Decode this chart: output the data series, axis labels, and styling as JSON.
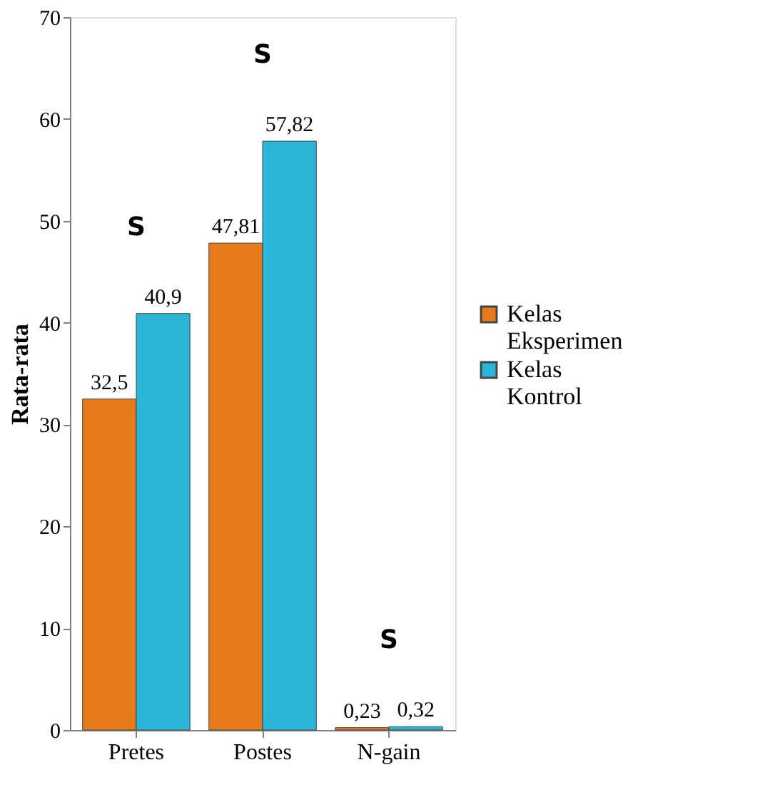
{
  "chart_data": {
    "type": "bar",
    "ylabel": "Rata-rata",
    "categories": [
      "Pretes",
      "Postes",
      "N-gain"
    ],
    "series": [
      {
        "name": "Kelas Eksperimen",
        "color": "#e87a1e",
        "values": [
          32.5,
          47.81,
          0.23
        ],
        "value_labels": [
          "32,5",
          "47,81",
          "0,23"
        ]
      },
      {
        "name": "Kelas Kontrol",
        "color": "#2bb5d6",
        "values": [
          40.9,
          57.82,
          0.32
        ],
        "value_labels": [
          "40,9",
          "57,82",
          "0,32"
        ]
      }
    ],
    "ylim": [
      0,
      70
    ],
    "yticks": [
      0,
      10,
      20,
      30,
      40,
      50,
      60,
      70
    ],
    "grid": false,
    "legend": "right",
    "annotations": [
      "S",
      "S",
      "S"
    ]
  }
}
